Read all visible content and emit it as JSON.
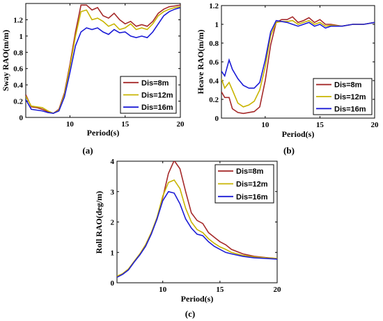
{
  "chart_data": [
    {
      "type": "line",
      "panel_label": "(a)",
      "xlabel": "Period(s)",
      "ylabel": "Sway RAO(m/m)",
      "xlim": [
        6,
        20
      ],
      "ylim": [
        0,
        1.4
      ],
      "xticks": [
        10,
        15,
        20
      ],
      "yticks": [
        0,
        0.2,
        0.4,
        0.6,
        0.8,
        1,
        1.2
      ],
      "xtick_labels": [
        "10",
        "15",
        "20"
      ],
      "ytick_labels": [
        "0",
        "0.2",
        "0.4",
        "0.6",
        "0.8",
        "1",
        "1.2"
      ],
      "legend_position": "bottom-right",
      "series": [
        {
          "name": "Dis=8m",
          "color": "#a52a2a",
          "x": [
            6,
            6.5,
            7,
            7.5,
            8,
            8.5,
            9,
            9.5,
            10,
            10.5,
            11,
            11.5,
            12,
            12.5,
            13,
            13.5,
            14,
            14.5,
            15,
            15.5,
            16,
            16.5,
            17,
            17.5,
            18,
            18.5,
            19,
            19.5,
            20
          ],
          "y": [
            0.28,
            0.13,
            0.12,
            0.1,
            0.07,
            0.05,
            0.1,
            0.3,
            0.65,
            1.05,
            1.38,
            1.38,
            1.32,
            1.35,
            1.25,
            1.22,
            1.28,
            1.2,
            1.15,
            1.18,
            1.12,
            1.14,
            1.12,
            1.18,
            1.28,
            1.33,
            1.36,
            1.37,
            1.38
          ]
        },
        {
          "name": "Dis=12m",
          "color": "#c8b400",
          "x": [
            6,
            6.5,
            7,
            7.5,
            8,
            8.5,
            9,
            9.5,
            10,
            10.5,
            11,
            11.5,
            12,
            12.5,
            13,
            13.5,
            14,
            14.5,
            15,
            15.5,
            16,
            16.5,
            17,
            17.5,
            18,
            18.5,
            19,
            19.5,
            20
          ],
          "y": [
            0.26,
            0.14,
            0.13,
            0.12,
            0.08,
            0.05,
            0.09,
            0.28,
            0.62,
            1.0,
            1.3,
            1.32,
            1.2,
            1.22,
            1.18,
            1.12,
            1.15,
            1.08,
            1.1,
            1.15,
            1.08,
            1.1,
            1.08,
            1.15,
            1.25,
            1.3,
            1.33,
            1.35,
            1.36
          ]
        },
        {
          "name": "Dis=16m",
          "color": "#1c1cd6",
          "x": [
            6,
            6.5,
            7,
            7.5,
            8,
            8.5,
            9,
            9.5,
            10,
            10.5,
            11,
            11.5,
            12,
            12.5,
            13,
            13.5,
            14,
            14.5,
            15,
            15.5,
            16,
            16.5,
            17,
            17.5,
            18,
            18.5,
            19,
            19.5,
            20
          ],
          "y": [
            0.22,
            0.1,
            0.09,
            0.08,
            0.06,
            0.05,
            0.08,
            0.25,
            0.55,
            0.88,
            1.05,
            1.1,
            1.08,
            1.1,
            1.05,
            1.02,
            1.08,
            1.04,
            1.05,
            1.0,
            0.98,
            1.0,
            0.98,
            1.05,
            1.15,
            1.25,
            1.3,
            1.33,
            1.35
          ]
        }
      ]
    },
    {
      "type": "line",
      "panel_label": "(b)",
      "xlabel": "Period(s)",
      "ylabel": "Heave RAO(m/m)",
      "xlim": [
        6,
        20
      ],
      "ylim": [
        0,
        1.2
      ],
      "xticks": [
        10,
        15,
        20
      ],
      "yticks": [
        0,
        0.2,
        0.4,
        0.6,
        0.8,
        1,
        1.2
      ],
      "xtick_labels": [
        "10",
        "15",
        "20"
      ],
      "ytick_labels": [
        "0",
        "0.2",
        "0.4",
        "0.6",
        "0.8",
        "1",
        "1.2"
      ],
      "legend_position": "bottom-right",
      "series": [
        {
          "name": "Dis=8m",
          "color": "#a52a2a",
          "x": [
            6,
            6.3,
            6.7,
            7,
            7.5,
            8,
            8.5,
            9,
            9.5,
            10,
            10.5,
            11,
            11.5,
            12,
            12.5,
            13,
            13.5,
            14,
            14.5,
            15,
            15.5,
            16,
            17,
            18,
            19,
            20
          ],
          "y": [
            0.28,
            0.22,
            0.22,
            0.1,
            0.06,
            0.05,
            0.06,
            0.07,
            0.12,
            0.4,
            0.78,
            1.02,
            1.05,
            1.05,
            1.08,
            1.02,
            1.04,
            1.07,
            1.02,
            1.05,
            1.0,
            1.0,
            0.98,
            1.0,
            1.0,
            1.02
          ]
        },
        {
          "name": "Dis=12m",
          "color": "#c8b400",
          "x": [
            6,
            6.3,
            6.7,
            7,
            7.5,
            8,
            8.5,
            9,
            9.5,
            10,
            10.5,
            11,
            11.5,
            12,
            12.5,
            13,
            13.5,
            14,
            14.5,
            15,
            15.5,
            16,
            17,
            18,
            19,
            20
          ],
          "y": [
            0.42,
            0.32,
            0.38,
            0.3,
            0.16,
            0.12,
            0.14,
            0.18,
            0.3,
            0.55,
            0.88,
            1.02,
            1.03,
            1.03,
            1.04,
            1.0,
            1.02,
            1.04,
            1.0,
            1.02,
            0.98,
            0.99,
            0.98,
            1.0,
            1.0,
            1.02
          ]
        },
        {
          "name": "Dis=16m",
          "color": "#1c1cd6",
          "x": [
            6,
            6.3,
            6.7,
            7,
            7.5,
            8,
            8.5,
            9,
            9.5,
            10,
            10.5,
            11,
            11.5,
            12,
            12.5,
            13,
            13.5,
            14,
            14.5,
            15,
            15.5,
            16,
            17,
            18,
            19,
            20
          ],
          "y": [
            0.5,
            0.45,
            0.62,
            0.52,
            0.42,
            0.35,
            0.32,
            0.32,
            0.38,
            0.62,
            0.92,
            1.04,
            1.03,
            1.02,
            1.0,
            0.98,
            1.0,
            1.02,
            0.98,
            1.0,
            0.96,
            0.98,
            0.98,
            1.0,
            1.0,
            1.02
          ]
        }
      ]
    },
    {
      "type": "line",
      "panel_label": "(c)",
      "xlabel": "Period(s)",
      "ylabel": "Roll RAO(deg/m)",
      "xlim": [
        6,
        20
      ],
      "ylim": [
        0,
        4
      ],
      "xticks": [
        10,
        15,
        20
      ],
      "yticks": [
        0,
        1,
        2,
        3,
        4
      ],
      "xtick_labels": [
        "10",
        "15",
        "20"
      ],
      "ytick_labels": [
        "0",
        "1",
        "2",
        "3",
        "4"
      ],
      "legend_position": "top-right",
      "series": [
        {
          "name": "Dis=8m",
          "color": "#a52a2a",
          "x": [
            6,
            6.5,
            7,
            7.5,
            8,
            8.5,
            9,
            9.5,
            10,
            10.5,
            11,
            11.5,
            12,
            12.5,
            13,
            13.5,
            14,
            14.5,
            15,
            15.5,
            16,
            17,
            18,
            19,
            20
          ],
          "y": [
            0.2,
            0.3,
            0.45,
            0.7,
            0.95,
            1.25,
            1.65,
            2.1,
            2.8,
            3.6,
            4.02,
            3.75,
            3.0,
            2.3,
            2.05,
            1.95,
            1.65,
            1.5,
            1.35,
            1.25,
            1.1,
            0.95,
            0.87,
            0.83,
            0.8
          ]
        },
        {
          "name": "Dis=12m",
          "color": "#c8b400",
          "x": [
            6,
            6.5,
            7,
            7.5,
            8,
            8.5,
            9,
            9.5,
            10,
            10.5,
            11,
            11.5,
            12,
            12.5,
            13,
            13.5,
            14,
            14.5,
            15,
            15.5,
            16,
            17,
            18,
            19,
            20
          ],
          "y": [
            0.22,
            0.3,
            0.45,
            0.7,
            0.95,
            1.25,
            1.65,
            2.15,
            2.85,
            3.3,
            3.38,
            3.1,
            2.45,
            2.0,
            1.75,
            1.65,
            1.45,
            1.3,
            1.18,
            1.1,
            1.0,
            0.9,
            0.85,
            0.82,
            0.8
          ]
        },
        {
          "name": "Dis=16m",
          "color": "#1c1cd6",
          "x": [
            6,
            6.5,
            7,
            7.5,
            8,
            8.5,
            9,
            9.5,
            10,
            10.5,
            11,
            11.5,
            12,
            12.5,
            13,
            13.5,
            14,
            14.5,
            15,
            15.5,
            16,
            17,
            18,
            19,
            20
          ],
          "y": [
            0.18,
            0.28,
            0.42,
            0.68,
            0.92,
            1.2,
            1.6,
            2.1,
            2.7,
            3.0,
            2.95,
            2.6,
            2.1,
            1.8,
            1.6,
            1.55,
            1.35,
            1.2,
            1.1,
            1.0,
            0.95,
            0.87,
            0.82,
            0.8,
            0.78
          ]
        }
      ]
    }
  ]
}
